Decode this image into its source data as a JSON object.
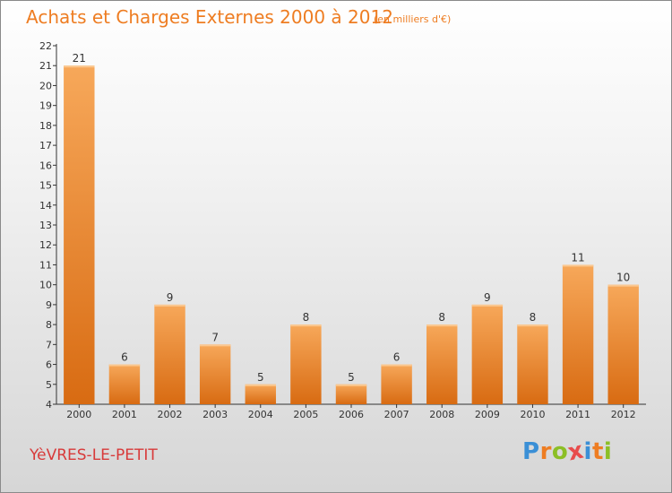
{
  "chart_data": {
    "type": "bar",
    "title": "Achats et Charges Externes 2000 à 2012",
    "unit_note": "(en milliers d'€)",
    "categories": [
      "2000",
      "2001",
      "2002",
      "2003",
      "2004",
      "2005",
      "2006",
      "2007",
      "2008",
      "2009",
      "2010",
      "2011",
      "2012"
    ],
    "values": [
      21,
      6,
      9,
      7,
      5,
      8,
      5,
      6,
      8,
      9,
      8,
      11,
      10
    ],
    "ylim": [
      4,
      22
    ],
    "yticks": [
      4,
      5,
      6,
      7,
      8,
      9,
      10,
      11,
      12,
      13,
      14,
      15,
      16,
      17,
      18,
      19,
      20,
      21,
      22
    ],
    "grid": false,
    "legend": "none",
    "bar_color": "#ee8a2e"
  },
  "footer": {
    "city": "YèVRES-LE-PETIT",
    "logo_letters": [
      "P",
      "r",
      "o",
      "x",
      "i",
      "t",
      "i"
    ],
    "logo_colors": [
      "#3a8fd6",
      "#ee7d22",
      "#8cbf26",
      "#e84c4c",
      "#3a8fd6",
      "#ee7d22",
      "#8cbf26"
    ]
  }
}
